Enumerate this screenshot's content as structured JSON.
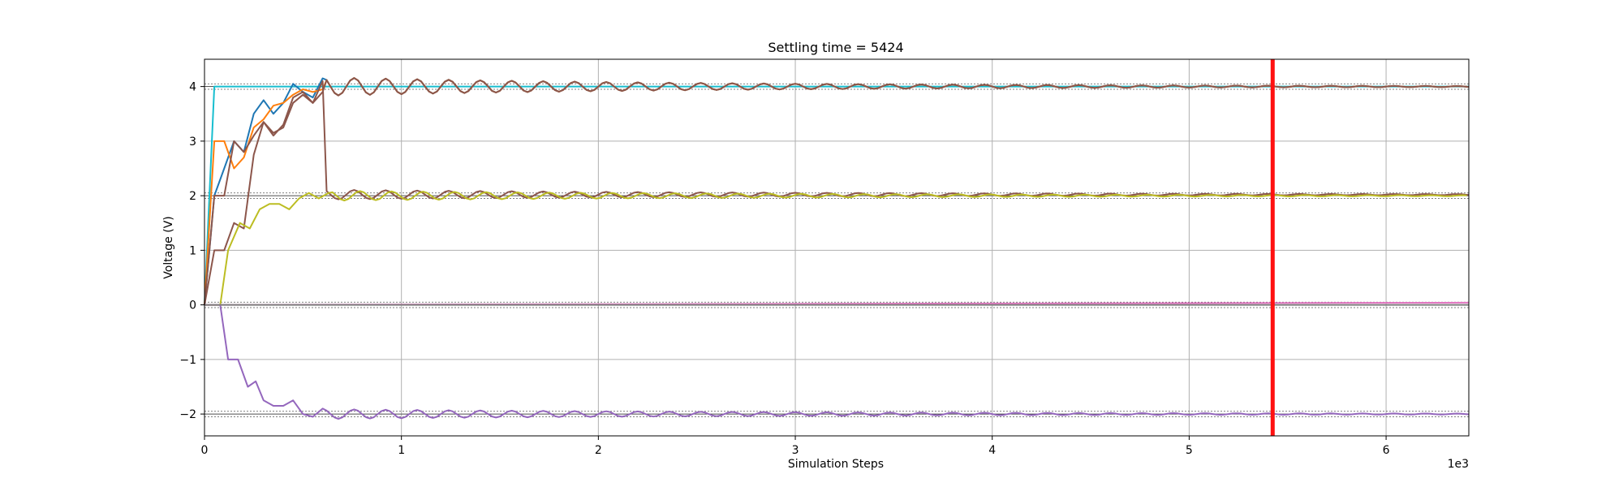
{
  "chart_data": {
    "type": "line",
    "title": "Settling time = 5424",
    "xlabel": "Simulation Steps",
    "ylabel": "Voltage (V)",
    "x_offset_label": "1e3",
    "xlim": [
      0,
      6420
    ],
    "ylim": [
      -2.4,
      4.5
    ],
    "x_ticks": [
      0,
      1000,
      2000,
      3000,
      4000,
      5000,
      6000
    ],
    "x_tick_labels": [
      "0",
      "1",
      "2",
      "3",
      "4",
      "5",
      "6"
    ],
    "y_ticks": [
      -2,
      -1,
      0,
      1,
      2,
      3,
      4
    ],
    "y_tick_labels": [
      "−2",
      "−1",
      "0",
      "1",
      "2",
      "3",
      "4"
    ],
    "grid": true,
    "settling_marker": {
      "x": 5424,
      "color": "#ff1111"
    },
    "tolerance_bands": [
      {
        "center": 4,
        "band": 0.05
      },
      {
        "center": 2,
        "band": 0.05
      },
      {
        "center": 0,
        "band": 0.05
      },
      {
        "center": -2,
        "band": 0.05
      }
    ],
    "series": [
      {
        "color": "#17becf",
        "style": "step",
        "points": [
          [
            0,
            0
          ],
          [
            50,
            4
          ],
          [
            6420,
            4
          ]
        ]
      },
      {
        "color": "#1f77b4",
        "style": "rise",
        "points": [
          [
            0,
            0
          ],
          [
            50,
            2
          ],
          [
            100,
            2.5
          ],
          [
            150,
            3
          ],
          [
            200,
            2.8
          ],
          [
            250,
            3.5
          ],
          [
            300,
            3.75
          ],
          [
            350,
            3.5
          ],
          [
            400,
            3.7
          ],
          [
            450,
            4.05
          ],
          [
            500,
            3.9
          ],
          [
            550,
            3.8
          ],
          [
            600,
            4.15
          ]
        ],
        "target": 4,
        "amp": 0.17,
        "decay": 2000
      },
      {
        "color": "#ff7f0e",
        "style": "rise",
        "points": [
          [
            0,
            0
          ],
          [
            50,
            3
          ],
          [
            100,
            3
          ],
          [
            150,
            2.5
          ],
          [
            200,
            2.7
          ],
          [
            250,
            3.25
          ],
          [
            300,
            3.4
          ],
          [
            350,
            3.65
          ],
          [
            400,
            3.7
          ],
          [
            450,
            3.85
          ],
          [
            500,
            3.95
          ],
          [
            550,
            3.9
          ],
          [
            600,
            3.95
          ]
        ],
        "target": 4,
        "amp": 0.17,
        "decay": 2000
      },
      {
        "color": "#8c564b",
        "style": "rise",
        "points": [
          [
            0,
            0
          ],
          [
            50,
            2
          ],
          [
            100,
            2
          ],
          [
            150,
            3
          ],
          [
            200,
            2.8
          ],
          [
            250,
            3.1
          ],
          [
            300,
            3.35
          ],
          [
            350,
            3.1
          ],
          [
            400,
            3.3
          ],
          [
            450,
            3.8
          ],
          [
            500,
            3.9
          ],
          [
            550,
            3.7
          ],
          [
            600,
            3.9
          ]
        ],
        "target": 4,
        "amp": 0.17,
        "decay": 2000
      },
      {
        "color": "#8c564b",
        "style": "rise",
        "points": [
          [
            0,
            0
          ],
          [
            50,
            1
          ],
          [
            100,
            1
          ],
          [
            150,
            1.5
          ],
          [
            200,
            1.4
          ],
          [
            250,
            2.75
          ],
          [
            300,
            3.35
          ],
          [
            350,
            3.15
          ],
          [
            400,
            3.25
          ],
          [
            450,
            3.7
          ],
          [
            500,
            3.85
          ],
          [
            550,
            3.7
          ],
          [
            600,
            4.1
          ]
        ],
        "target": 2,
        "amp": 0.09,
        "decay": 2500,
        "later_center": 2.02
      },
      {
        "color": "#bcbd22",
        "style": "rise",
        "points": [
          [
            0,
            0
          ],
          [
            80,
            0
          ],
          [
            120,
            1
          ],
          [
            180,
            1.5
          ],
          [
            230,
            1.4
          ],
          [
            280,
            1.75
          ],
          [
            330,
            1.85
          ],
          [
            380,
            1.85
          ],
          [
            430,
            1.75
          ],
          [
            480,
            1.95
          ],
          [
            530,
            2.05
          ],
          [
            580,
            1.95
          ],
          [
            630,
            2.05
          ]
        ],
        "target": 2,
        "amp": 0.09,
        "decay": 2500
      },
      {
        "color": "#9467bd",
        "style": "rise",
        "points": [
          [
            0,
            0
          ],
          [
            80,
            0
          ],
          [
            120,
            -1
          ],
          [
            170,
            -1
          ],
          [
            220,
            -1.5
          ],
          [
            260,
            -1.4
          ],
          [
            300,
            -1.75
          ],
          [
            350,
            -1.85
          ],
          [
            400,
            -1.85
          ],
          [
            450,
            -1.75
          ],
          [
            500,
            -2
          ],
          [
            550,
            -2.05
          ],
          [
            600,
            -1.9
          ]
        ],
        "target": -2,
        "amp": 0.09,
        "decay": 2500
      },
      {
        "color": "#e377c2",
        "style": "flat",
        "points": [
          [
            0,
            0
          ],
          [
            6420,
            0.04
          ]
        ]
      },
      {
        "color": "#7f7f7f",
        "style": "flat",
        "points": [
          [
            0,
            0
          ],
          [
            6420,
            0
          ]
        ]
      }
    ]
  }
}
